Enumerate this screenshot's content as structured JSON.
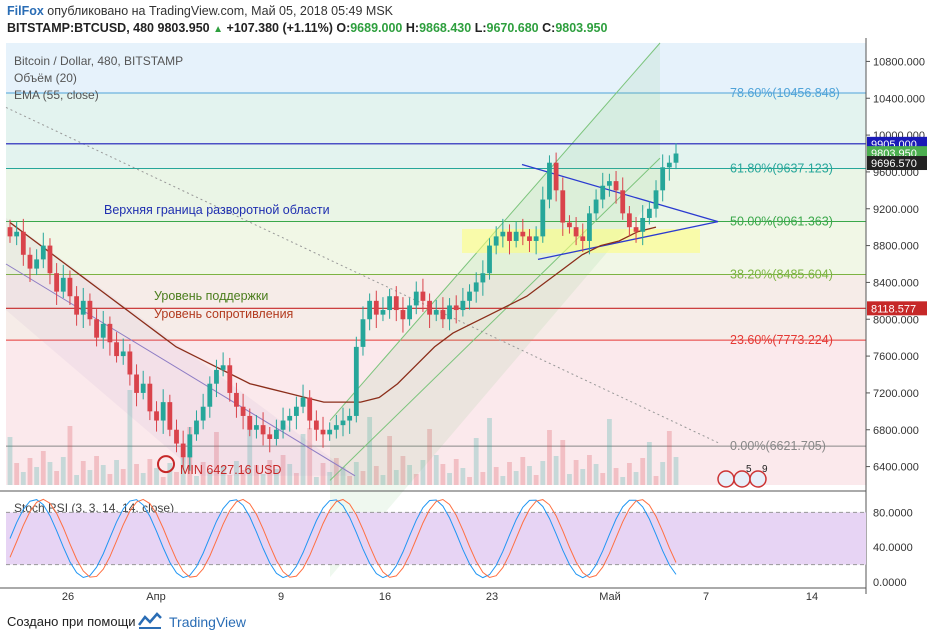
{
  "header": {
    "brand": "FilFox",
    "published": "опубликовано на TradingView.com, Май 05, 2018 05:49 MSK",
    "symbol": "BITSTAMP:BTCUSD, 480",
    "last": "9803.950",
    "change": "+107.380 (+1.11%)",
    "open_label": "O:",
    "open": "9689.000",
    "high_label": "H:",
    "high": "9868.430",
    "low_label": "L:",
    "low": "9670.680",
    "close_label": "C:",
    "close": "9803.950"
  },
  "legend": {
    "title": "Bitcoin / Dollar, 480, BITSTAMP",
    "volume": "Объём (20)",
    "ema": "EMA (55, close)"
  },
  "annotations": {
    "resistance_zone": "Верхняя граница разворотной области",
    "support": "Уровень поддержки",
    "resistance": "Уровень сопротивления",
    "min_label": "MIN 6427.16 USD"
  },
  "fib_levels": [
    {
      "label": "78.60%(10456.848)",
      "value": 10456.848,
      "color": "#4fa3d8"
    },
    {
      "label": "61.80%(9637.123)",
      "value": 9637.123,
      "color": "#26a69a"
    },
    {
      "label": "50.00%(9061.363)",
      "value": 9061.363,
      "color": "#3aa84a"
    },
    {
      "label": "38.20%(8485.604)",
      "value": 8485.604,
      "color": "#7cb342"
    },
    {
      "label": "23.60%(7773.224)",
      "value": 7773.224,
      "color": "#e53935"
    },
    {
      "label": "0.00%(6621.705)",
      "value": 6621.705,
      "color": "#888888"
    }
  ],
  "price_axis": {
    "ticks": [
      "10800.000",
      "10400.000",
      "10000.000",
      "9600.000",
      "9200.000",
      "8800.000",
      "8400.000",
      "8000.000",
      "7600.000",
      "7200.000",
      "6800.000",
      "6400.000"
    ],
    "tick_values": [
      10800,
      10400,
      10000,
      9600,
      9200,
      8800,
      8400,
      8000,
      7600,
      7200,
      6800,
      6400
    ],
    "markers": [
      {
        "label": "9905.000",
        "value": 9905,
        "color": "#1a1ab8"
      },
      {
        "label": "9803.950",
        "value": 9803.95,
        "color": "#4caf50"
      },
      {
        "label": "9696.570",
        "value": 9696.57,
        "color": "#222222"
      },
      {
        "label": "8118.577",
        "value": 8118.577,
        "color": "#c62828"
      }
    ]
  },
  "time_axis": {
    "labels": [
      "26",
      "Апр",
      "9",
      "16",
      "23",
      "Май",
      "7",
      "14"
    ]
  },
  "stoch": {
    "title": "Stoch RSI (3, 3, 14, 14, close)",
    "ticks": [
      "80.0000",
      "40.0000",
      "0.0000"
    ],
    "tick_values": [
      80,
      40,
      0
    ],
    "band": [
      20,
      80
    ],
    "k_color": "#2196f3",
    "d_color": "#ff7043"
  },
  "colors": {
    "up": "#26a69a",
    "down": "#d9434b",
    "ema": "#8b2e1a"
  },
  "chart_data": {
    "type": "candlestick",
    "title": "Bitcoin / Dollar, 480, BITSTAMP",
    "interval": "480",
    "ylim": [
      6200,
      11000
    ],
    "series_close": [
      8900,
      8950,
      8700,
      8550,
      8650,
      8800,
      8500,
      8300,
      8450,
      8250,
      8050,
      8200,
      8000,
      7800,
      7950,
      7750,
      7600,
      7650,
      7400,
      7200,
      7300,
      7000,
      6900,
      7100,
      6800,
      6650,
      6500,
      6750,
      6900,
      7050,
      7300,
      7450,
      7500,
      7200,
      7050,
      6950,
      6800,
      6850,
      6750,
      6700,
      6800,
      6900,
      6950,
      7050,
      7150,
      6900,
      6800,
      6750,
      6800,
      6850,
      6900,
      6950,
      7700,
      8000,
      8200,
      8050,
      8100,
      8250,
      8100,
      8000,
      8150,
      8300,
      8200,
      8050,
      8100,
      8000,
      8150,
      8100,
      8200,
      8300,
      8400,
      8500,
      8800,
      8900,
      8950,
      8850,
      8950,
      8900,
      8850,
      8900,
      9300,
      9700,
      9400,
      9050,
      9000,
      8900,
      8850,
      9150,
      9300,
      9450,
      9500,
      9400,
      9150,
      9000,
      8950,
      9100,
      9200,
      9400,
      9650,
      9700,
      9800
    ],
    "ema_55": [
      9050,
      8900,
      8750,
      8600,
      8450,
      8300,
      8150,
      8000,
      7850,
      7700,
      7600,
      7500,
      7400,
      7300,
      7250,
      7200,
      7150,
      7100,
      7100,
      7100,
      7150,
      7300,
      7500,
      7700,
      7850,
      7950,
      8050,
      8150,
      8250,
      8400,
      8550,
      8700,
      8800,
      8850,
      8950,
      9000
    ],
    "min_price": 6427.16,
    "levels": {
      "support_resistance": 8118.577,
      "blue_line": 9905.0
    }
  }
}
